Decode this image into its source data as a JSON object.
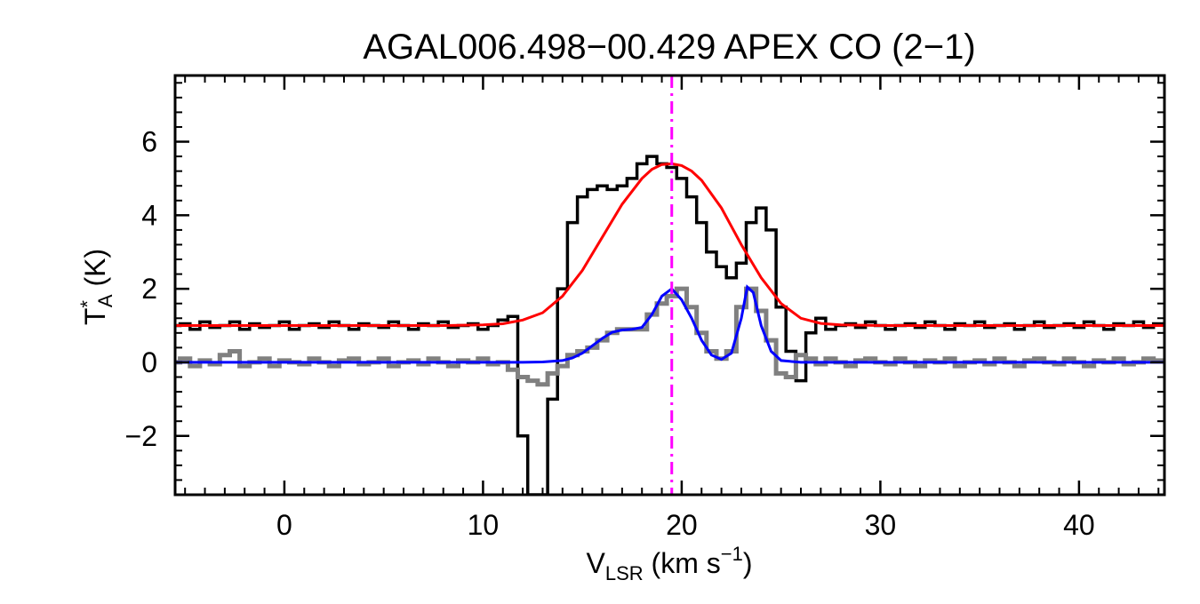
{
  "chart_data": {
    "type": "line",
    "title": "AGAL006.498−00.429  APEX CO (2−1)",
    "xlabel": {
      "main": "V",
      "sub": "LSR",
      "rest": " (km s",
      "sup": "−1",
      "end": ")"
    },
    "ylabel": {
      "main": "T",
      "sup": "*",
      "sub": "A",
      "rest": " (K)"
    },
    "xlim": [
      -5.5,
      44.3
    ],
    "ylim": [
      -3.6,
      7.8
    ],
    "xticks": [
      0,
      10,
      20,
      30,
      40
    ],
    "xtick_labels": [
      "0",
      "10",
      "20",
      "30",
      "40"
    ],
    "yticks": [
      -2,
      0,
      2,
      4,
      6
    ],
    "ytick_labels": [
      "−2",
      "0",
      "2",
      "4",
      "6"
    ],
    "x_minor_step": 1,
    "y_minor_step": 0.4,
    "grid": false,
    "vline": {
      "x": 19.5,
      "color": "#ff00ff",
      "style": "dash-dot"
    },
    "series": [
      {
        "style": "step",
        "color": "#000000",
        "x": [
          -5.5,
          -5.0,
          -4.5,
          -4.0,
          -3.5,
          -3.0,
          -2.5,
          -2.0,
          -1.5,
          -1.0,
          -0.5,
          0.0,
          0.5,
          1.0,
          1.5,
          2.0,
          2.5,
          3.0,
          3.5,
          4.0,
          4.5,
          5.0,
          5.5,
          6.0,
          6.5,
          7.0,
          7.5,
          8.0,
          8.5,
          9.0,
          9.5,
          10.0,
          10.5,
          11.0,
          11.5,
          12.0,
          12.5,
          13.0,
          13.5,
          14.0,
          14.5,
          15.0,
          15.5,
          16.0,
          16.5,
          17.0,
          17.5,
          18.0,
          18.5,
          19.0,
          19.5,
          20.0,
          20.5,
          21.0,
          21.5,
          22.0,
          22.5,
          23.0,
          23.5,
          24.0,
          24.5,
          25.0,
          25.5,
          26.0,
          26.5,
          27.0,
          27.5,
          28.0,
          28.5,
          29.0,
          29.5,
          30.0,
          30.5,
          31.0,
          31.5,
          32.0,
          32.5,
          33.0,
          33.5,
          34.0,
          34.5,
          35.0,
          35.5,
          36.0,
          36.5,
          37.0,
          37.5,
          38.0,
          38.5,
          39.0,
          39.5,
          40.0,
          40.5,
          41.0,
          41.5,
          42.0,
          42.5,
          43.0,
          43.5,
          44.0
        ],
        "y": [
          1.0,
          1.05,
          0.9,
          1.1,
          0.95,
          1.0,
          1.1,
          0.9,
          1.05,
          0.95,
          1.0,
          1.1,
          0.9,
          1.0,
          1.05,
          0.95,
          1.1,
          1.0,
          0.9,
          1.05,
          1.0,
          0.95,
          1.1,
          1.0,
          0.9,
          1.05,
          1.0,
          1.1,
          0.95,
          1.0,
          1.05,
          0.9,
          1.0,
          1.15,
          1.25,
          -2.0,
          -3.6,
          -3.6,
          -1.0,
          2.0,
          3.8,
          4.5,
          4.7,
          4.8,
          4.7,
          4.8,
          5.0,
          5.4,
          5.6,
          5.4,
          5.3,
          5.0,
          4.5,
          3.8,
          3.0,
          2.6,
          2.3,
          2.7,
          3.8,
          4.2,
          3.6,
          1.5,
          0.3,
          -0.5,
          0.8,
          1.2,
          0.9,
          1.0,
          1.05,
          0.95,
          1.1,
          1.0,
          0.9,
          1.0,
          1.05,
          0.95,
          1.1,
          1.0,
          0.9,
          1.05,
          1.0,
          1.1,
          0.95,
          1.0,
          1.05,
          0.9,
          1.0,
          1.1,
          0.95,
          1.0,
          1.05,
          0.95,
          1.1,
          1.0,
          0.9,
          1.05,
          1.0,
          1.1,
          0.95,
          1.05
        ]
      },
      {
        "style": "step",
        "color": "#808080",
        "x": [
          -5.5,
          -5.0,
          -4.5,
          -4.0,
          -3.5,
          -3.0,
          -2.5,
          -2.0,
          -1.5,
          -1.0,
          -0.5,
          0.0,
          0.5,
          1.0,
          1.5,
          2.0,
          2.5,
          3.0,
          3.5,
          4.0,
          4.5,
          5.0,
          5.5,
          6.0,
          6.5,
          7.0,
          7.5,
          8.0,
          8.5,
          9.0,
          9.5,
          10.0,
          10.5,
          11.0,
          11.5,
          12.0,
          12.5,
          13.0,
          13.5,
          14.0,
          14.5,
          15.0,
          15.5,
          16.0,
          16.5,
          17.0,
          17.5,
          18.0,
          18.5,
          19.0,
          19.5,
          20.0,
          20.5,
          21.0,
          21.5,
          22.0,
          22.5,
          23.0,
          23.5,
          24.0,
          24.5,
          25.0,
          25.5,
          26.0,
          26.5,
          27.0,
          27.5,
          28.0,
          28.5,
          29.0,
          29.5,
          30.0,
          30.5,
          31.0,
          31.5,
          32.0,
          32.5,
          33.0,
          33.5,
          34.0,
          34.5,
          35.0,
          35.5,
          36.0,
          36.5,
          37.0,
          37.5,
          38.0,
          38.5,
          39.0,
          39.5,
          40.0,
          40.5,
          41.0,
          41.5,
          42.0,
          42.5,
          43.0,
          43.5,
          44.0
        ],
        "y": [
          0.0,
          0.1,
          -0.1,
          0.05,
          -0.05,
          0.2,
          0.3,
          -0.1,
          0.0,
          0.1,
          -0.1,
          0.05,
          0.0,
          -0.05,
          0.1,
          0.0,
          -0.1,
          0.05,
          0.1,
          -0.05,
          0.0,
          0.1,
          -0.1,
          0.0,
          0.05,
          -0.05,
          0.1,
          0.0,
          -0.1,
          0.05,
          0.0,
          0.1,
          -0.05,
          0.0,
          -0.2,
          -0.4,
          -0.5,
          -0.6,
          -0.3,
          -0.1,
          0.2,
          0.3,
          0.4,
          0.6,
          0.8,
          0.9,
          0.9,
          0.9,
          1.3,
          1.6,
          1.8,
          2.0,
          1.5,
          0.8,
          0.3,
          0.1,
          0.3,
          1.5,
          2.0,
          1.4,
          0.6,
          -0.3,
          -0.4,
          0.2,
          0.1,
          -0.05,
          0.1,
          0.0,
          -0.1,
          0.05,
          0.1,
          0.0,
          -0.05,
          0.1,
          0.0,
          -0.1,
          0.05,
          0.0,
          0.1,
          -0.1,
          0.0,
          0.05,
          -0.05,
          0.1,
          0.0,
          -0.1,
          0.05,
          0.1,
          0.0,
          -0.05,
          0.1,
          0.0,
          -0.1,
          0.05,
          0.0,
          0.1,
          -0.05,
          0.0,
          0.1,
          0.05
        ]
      },
      {
        "style": "smooth",
        "color": "#ff0000",
        "x": [
          -5.5,
          -4,
          -2,
          0,
          2,
          4,
          6,
          8,
          10,
          11,
          12,
          13,
          14,
          15,
          16,
          17,
          18,
          18.5,
          19,
          19.5,
          20,
          20.5,
          21,
          22,
          23,
          24,
          25,
          26,
          27,
          28,
          30,
          32,
          34,
          36,
          38,
          40,
          42,
          44.3
        ],
        "y": [
          1.0,
          1.0,
          1.0,
          1.0,
          1.0,
          1.0,
          1.0,
          1.0,
          1.02,
          1.05,
          1.15,
          1.35,
          1.8,
          2.5,
          3.4,
          4.3,
          5.0,
          5.25,
          5.38,
          5.4,
          5.35,
          5.2,
          4.95,
          4.2,
          3.2,
          2.3,
          1.6,
          1.2,
          1.06,
          1.02,
          1.0,
          1.0,
          1.0,
          1.0,
          1.0,
          1.0,
          1.0,
          1.0
        ]
      },
      {
        "style": "smooth",
        "color": "#0000ff",
        "x": [
          -5.5,
          -4,
          -2,
          0,
          2,
          4,
          6,
          8,
          10,
          11,
          12,
          13,
          14,
          14.5,
          15,
          15.5,
          16,
          16.5,
          17,
          17.5,
          18,
          18.5,
          19,
          19.5,
          20,
          20.5,
          21,
          21.5,
          22,
          22.5,
          23,
          23.3,
          23.6,
          24,
          24.5,
          25,
          26,
          28,
          30,
          32,
          34,
          36,
          38,
          40,
          42,
          44.3
        ],
        "y": [
          0.0,
          0.0,
          0.0,
          0.0,
          0.0,
          0.0,
          0.0,
          0.0,
          0.0,
          0.0,
          0.0,
          0.01,
          0.05,
          0.12,
          0.25,
          0.45,
          0.65,
          0.82,
          0.88,
          0.9,
          0.95,
          1.3,
          1.8,
          2.0,
          1.7,
          1.2,
          0.6,
          0.2,
          0.08,
          0.25,
          1.2,
          2.05,
          1.9,
          1.0,
          0.3,
          0.05,
          0.0,
          0.0,
          0.0,
          0.0,
          0.0,
          0.0,
          0.0,
          0.0,
          0.0,
          0.0
        ]
      }
    ]
  }
}
